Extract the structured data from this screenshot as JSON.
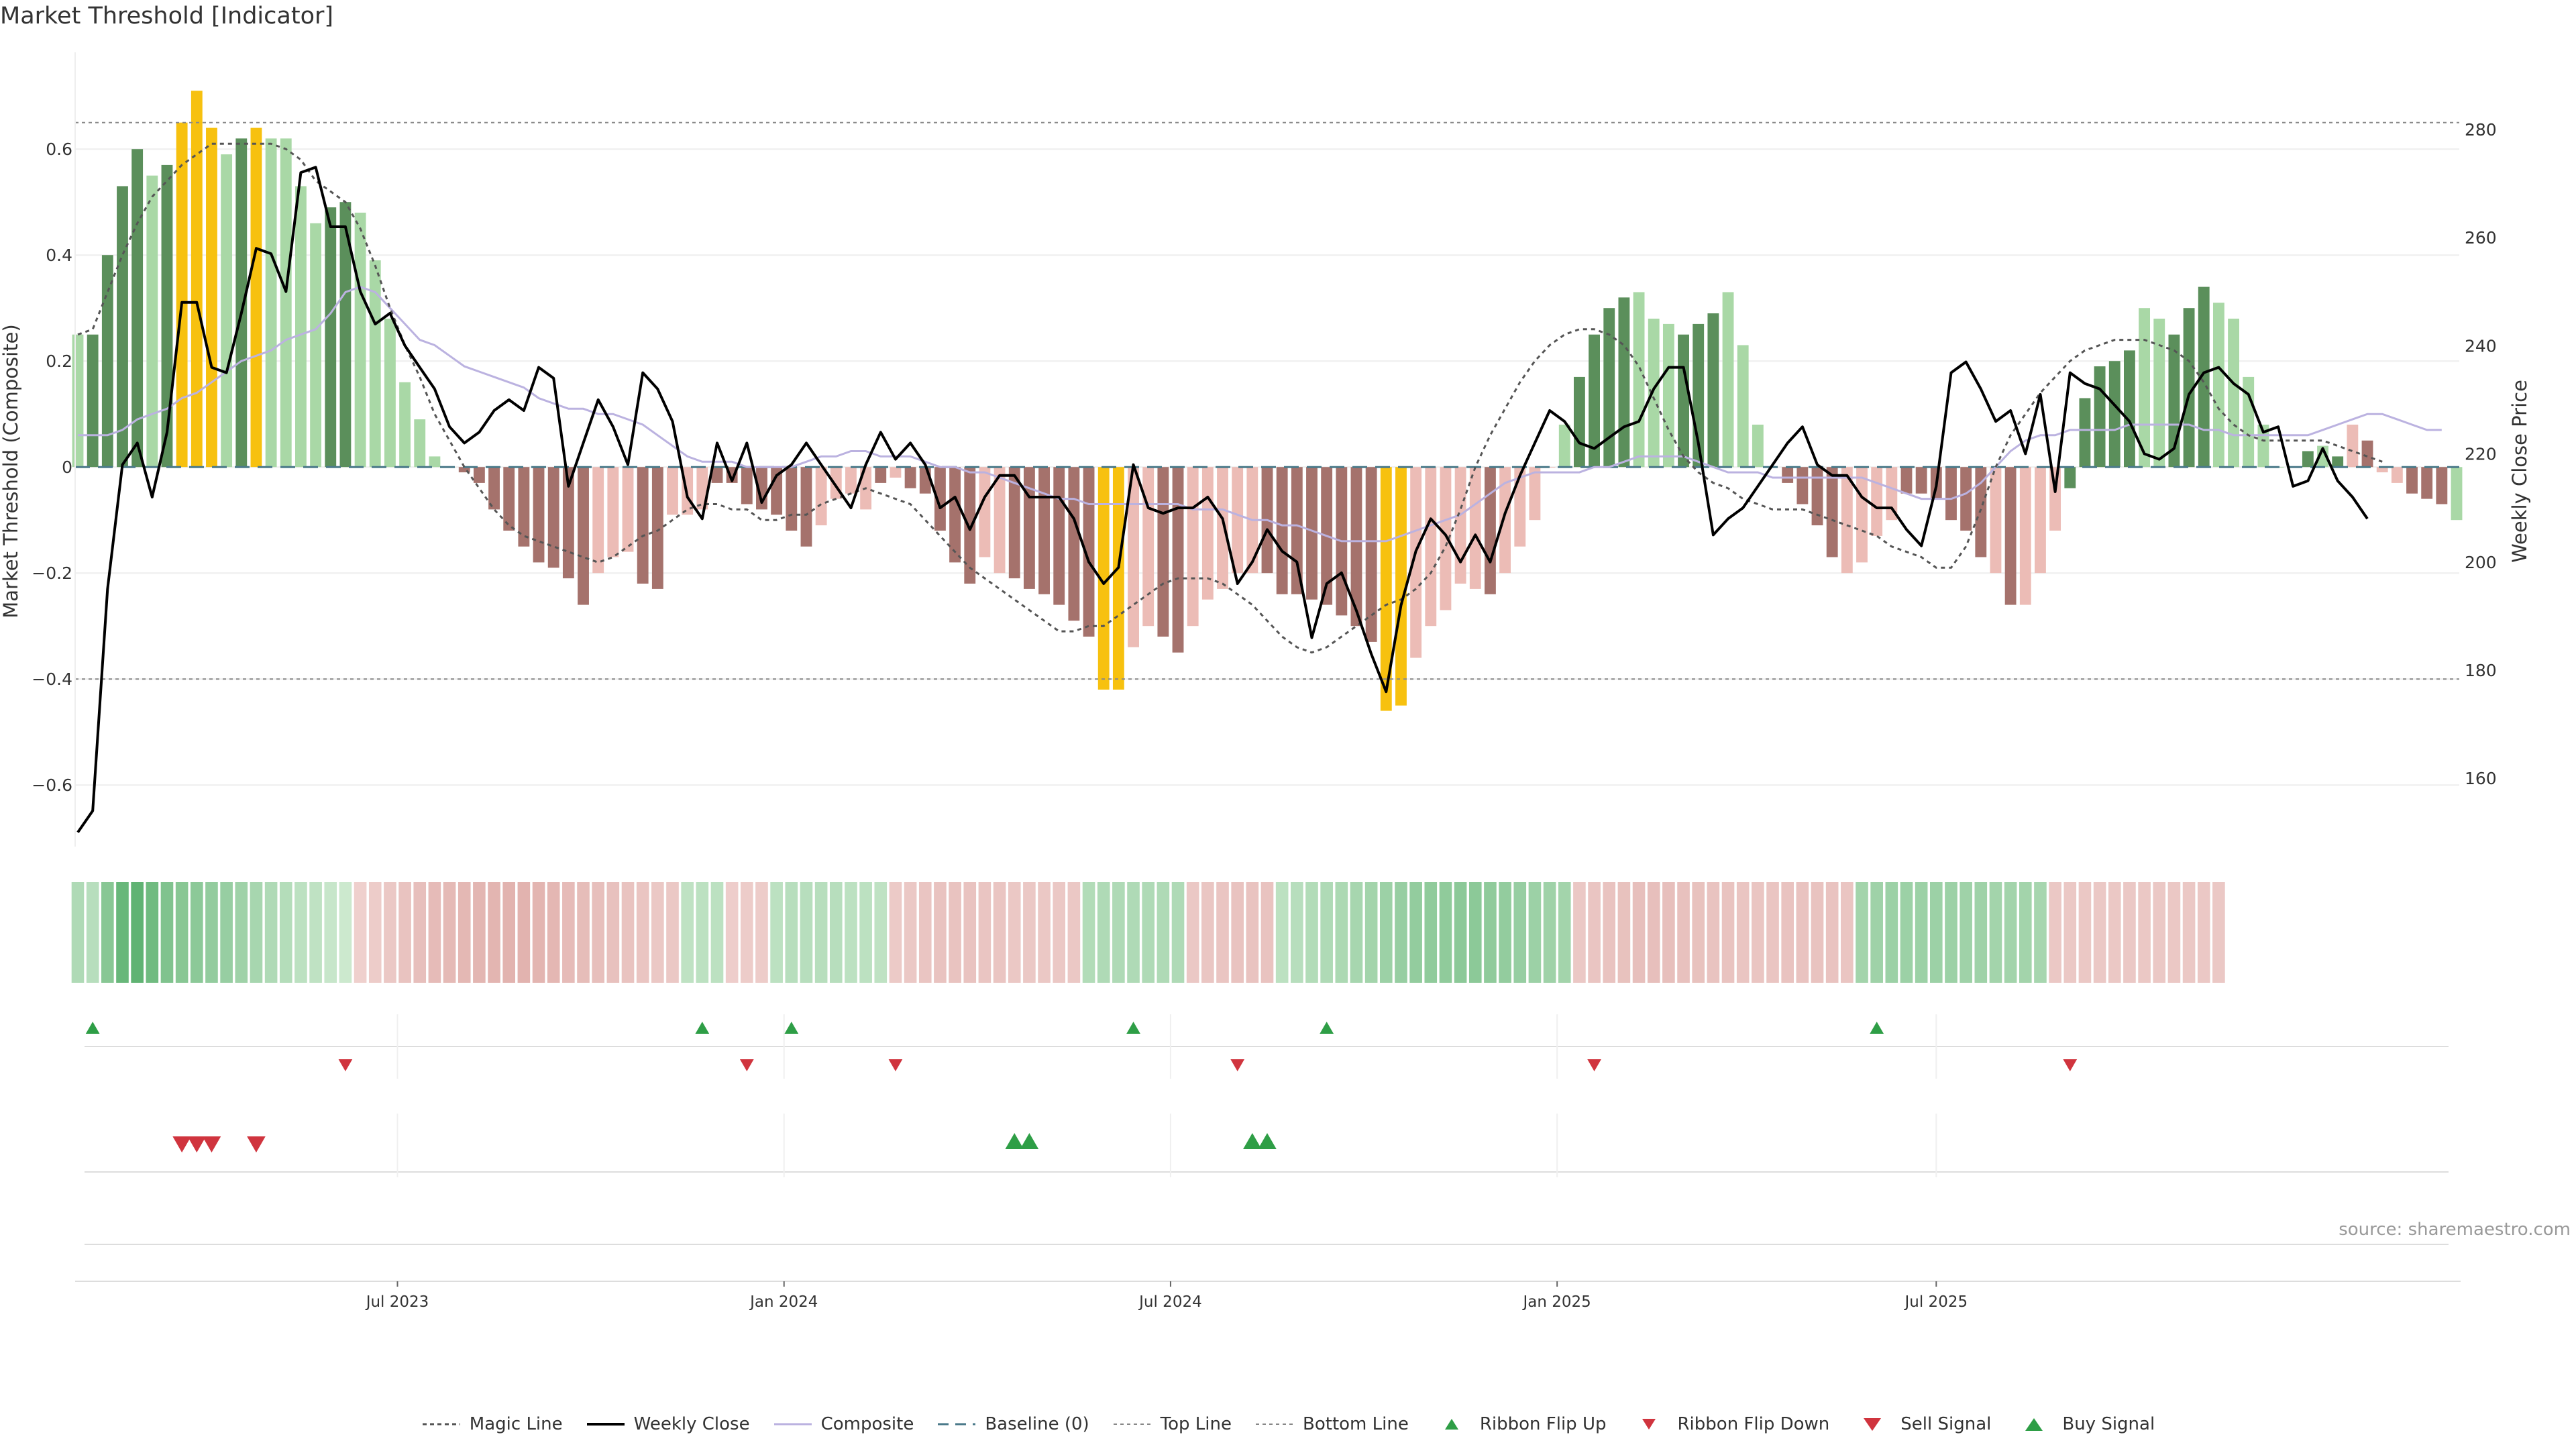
{
  "title": "Market Threshold [Indicator]",
  "source": "source: sharemaestro.com",
  "colors": {
    "strong_pos": "#5b8f5b",
    "weak_pos": "#a9d8a6",
    "strong_neg": "#a5726c",
    "weak_neg": "#ecbcb6",
    "extreme": "#f7c10f",
    "weekly": "#000000",
    "composite": "#bbb2e0",
    "magic": "#555555",
    "baseline": "#4b7a8a",
    "threshold": "#999999",
    "up_marker": "#2e9e46",
    "down_marker": "#d0343e"
  },
  "legend": [
    {
      "label": "Magic Line",
      "style": "magic"
    },
    {
      "label": "Weekly Close",
      "style": "weekly"
    },
    {
      "label": "Composite",
      "style": "composite"
    },
    {
      "label": "Baseline (0)",
      "style": "baseline"
    },
    {
      "label": "Top Line",
      "style": "top"
    },
    {
      "label": "Bottom Line",
      "style": "bottom"
    },
    {
      "label": "Ribbon Flip Up",
      "style": "flipup"
    },
    {
      "label": "Ribbon Flip Down",
      "style": "flipdown"
    },
    {
      "label": "Sell Signal",
      "style": "sell"
    },
    {
      "label": "Buy Signal",
      "style": "buy"
    }
  ],
  "chart_data": {
    "type": "bar",
    "title": "Market Threshold [Indicator]",
    "ylabel": "Market Threshold (Composite)",
    "y2label": "Weekly Close Price",
    "ylim": [
      -0.72,
      0.78
    ],
    "y2lim": [
      147,
      294
    ],
    "yticks": [
      -0.6,
      -0.4,
      -0.2,
      0,
      0.2,
      0.4,
      0.6
    ],
    "y2ticks": [
      160,
      180,
      200,
      220,
      240,
      260,
      280
    ],
    "top_line": 0.65,
    "bottom_line": -0.4,
    "xticks": [
      {
        "index": 21.5,
        "label": "Jul 2023"
      },
      {
        "index": 47.5,
        "label": "Jan 2024"
      },
      {
        "index": 73.5,
        "label": "Jul 2024"
      },
      {
        "index": 99.5,
        "label": "Jan 2025"
      },
      {
        "index": 125,
        "label": "Jul 2025"
      }
    ],
    "composite_bars": [
      0.25,
      0.25,
      0.4,
      0.53,
      0.6,
      0.55,
      0.57,
      0.65,
      0.71,
      0.64,
      0.59,
      0.62,
      0.64,
      0.62,
      0.62,
      0.53,
      0.46,
      0.49,
      0.5,
      0.48,
      0.39,
      0.28,
      0.16,
      0.09,
      0.02,
      0,
      -0.01,
      -0.03,
      -0.08,
      -0.12,
      -0.15,
      -0.18,
      -0.19,
      -0.21,
      -0.26,
      -0.2,
      -0.17,
      -0.16,
      -0.22,
      -0.23,
      -0.09,
      -0.09,
      -0.08,
      -0.03,
      -0.03,
      -0.07,
      -0.08,
      -0.09,
      -0.12,
      -0.15,
      -0.11,
      -0.06,
      -0.05,
      -0.08,
      -0.03,
      -0.02,
      -0.04,
      -0.05,
      -0.12,
      -0.18,
      -0.22,
      -0.17,
      -0.2,
      -0.21,
      -0.23,
      -0.24,
      -0.26,
      -0.29,
      -0.32,
      -0.42,
      -0.42,
      -0.34,
      -0.3,
      -0.32,
      -0.35,
      -0.3,
      -0.25,
      -0.23,
      -0.2,
      -0.2,
      -0.2,
      -0.24,
      -0.24,
      -0.25,
      -0.26,
      -0.28,
      -0.3,
      -0.33,
      -0.46,
      -0.45,
      -0.36,
      -0.3,
      -0.27,
      -0.22,
      -0.23,
      -0.24,
      -0.2,
      -0.15,
      -0.1,
      0,
      0.08,
      0.17,
      0.25,
      0.3,
      0.32,
      0.33,
      0.28,
      0.27,
      0.25,
      0.27,
      0.29,
      0.33,
      0.23,
      0.08,
      0,
      -0.03,
      -0.07,
      -0.11,
      -0.17,
      -0.2,
      -0.18,
      -0.13,
      -0.1,
      -0.05,
      -0.05,
      -0.06,
      -0.1,
      -0.12,
      -0.17,
      -0.2,
      -0.26,
      -0.26,
      -0.2,
      -0.12,
      -0.04,
      0.13,
      0.19,
      0.2,
      0.22,
      0.3,
      0.28,
      0.25,
      0.3,
      0.34,
      0.31,
      0.28,
      0.17,
      0.08,
      0,
      0,
      0.03,
      0.04,
      0.02,
      0.08,
      0.05,
      -0.01,
      -0.03,
      -0.05,
      -0.06,
      -0.07,
      -0.1
    ],
    "bar_categories": [
      "wp",
      "sp",
      "sp",
      "sp",
      "sp",
      "wp",
      "sp",
      "ex",
      "ex",
      "ex",
      "wp",
      "sp",
      "ex",
      "wp",
      "wp",
      "wp",
      "wp",
      "sp",
      "sp",
      "wp",
      "wp",
      "wp",
      "wp",
      "wp",
      "wp",
      "wp",
      "sn",
      "sn",
      "sn",
      "sn",
      "sn",
      "sn",
      "sn",
      "sn",
      "sn",
      "wn",
      "wn",
      "wn",
      "sn",
      "sn",
      "wn",
      "wn",
      "wn",
      "sn",
      "sn",
      "sn",
      "sn",
      "sn",
      "sn",
      "sn",
      "wn",
      "wn",
      "wn",
      "wn",
      "sn",
      "wn",
      "sn",
      "sn",
      "sn",
      "sn",
      "sn",
      "wn",
      "wn",
      "sn",
      "sn",
      "sn",
      "sn",
      "sn",
      "sn",
      "ex",
      "ex",
      "wn",
      "wn",
      "sn",
      "sn",
      "wn",
      "wn",
      "wn",
      "wn",
      "wn",
      "sn",
      "sn",
      "sn",
      "sn",
      "sn",
      "sn",
      "sn",
      "sn",
      "ex",
      "ex",
      "wn",
      "wn",
      "wn",
      "wn",
      "wn",
      "sn",
      "wn",
      "wn",
      "wn",
      "wn",
      "wp",
      "sp",
      "sp",
      "sp",
      "sp",
      "wp",
      "wp",
      "wp",
      "sp",
      "sp",
      "sp",
      "wp",
      "wp",
      "wp",
      "wn",
      "sn",
      "sn",
      "sn",
      "sn",
      "wn",
      "wn",
      "wn",
      "wn",
      "sn",
      "sn",
      "sn",
      "sn",
      "sn",
      "sn",
      "wn",
      "sn",
      "wn",
      "wn",
      "wn",
      "sp",
      "sp",
      "sp",
      "sp",
      "sp",
      "wp",
      "wp",
      "sp",
      "sp",
      "sp",
      "wp",
      "wp",
      "wp",
      "wp",
      "wp",
      "wp",
      "sp",
      "wp",
      "sp",
      "wn",
      "sn",
      "wn",
      "wn",
      "sn",
      "sn",
      "sn"
    ],
    "weekly_close": [
      150,
      154,
      195,
      218,
      222,
      212,
      224,
      248,
      248,
      236,
      235,
      246,
      258,
      257,
      250,
      272,
      273,
      262,
      262,
      250,
      244,
      246,
      240,
      236,
      232,
      225,
      222,
      224,
      228,
      230,
      228,
      236,
      234,
      214,
      222,
      230,
      225,
      218,
      235,
      232,
      226,
      212,
      208,
      222,
      215,
      222,
      211,
      216,
      218,
      222,
      218,
      214,
      210,
      218,
      224,
      219,
      222,
      218,
      210,
      212,
      206,
      212,
      216,
      216,
      212,
      212,
      212,
      208,
      200,
      196,
      199,
      218,
      210,
      209,
      210,
      210,
      212,
      208,
      196,
      200,
      206,
      202,
      200,
      186,
      196,
      198,
      191,
      183,
      176,
      192,
      202,
      208,
      205,
      200,
      205,
      200,
      209,
      216,
      222,
      228,
      226,
      222,
      221,
      223,
      225,
      226,
      232,
      236,
      236,
      222,
      205,
      208,
      210,
      214,
      218,
      222,
      225,
      218,
      216,
      216,
      212,
      210,
      210,
      206,
      203,
      214,
      235,
      237,
      232,
      226,
      228,
      220,
      231,
      213,
      235,
      233,
      232,
      229,
      226,
      220,
      219,
      221,
      231,
      235,
      236,
      233,
      231,
      224,
      225,
      214,
      215,
      221,
      215,
      212,
      208
    ]
  },
  "lines": {
    "magic": [
      0.25,
      0.26,
      0.33,
      0.4,
      0.46,
      0.51,
      0.54,
      0.57,
      0.59,
      0.61,
      0.61,
      0.61,
      0.61,
      0.61,
      0.6,
      0.58,
      0.54,
      0.52,
      0.5,
      0.45,
      0.38,
      0.3,
      0.23,
      0.17,
      0.1,
      0.05,
      0,
      -0.04,
      -0.08,
      -0.11,
      -0.13,
      -0.14,
      -0.15,
      -0.16,
      -0.17,
      -0.18,
      -0.17,
      -0.15,
      -0.13,
      -0.12,
      -0.1,
      -0.08,
      -0.07,
      -0.07,
      -0.08,
      -0.08,
      -0.1,
      -0.1,
      -0.09,
      -0.09,
      -0.07,
      -0.06,
      -0.05,
      -0.04,
      -0.05,
      -0.06,
      -0.07,
      -0.1,
      -0.13,
      -0.16,
      -0.19,
      -0.21,
      -0.23,
      -0.25,
      -0.27,
      -0.29,
      -0.31,
      -0.31,
      -0.3,
      -0.3,
      -0.28,
      -0.26,
      -0.24,
      -0.22,
      -0.21,
      -0.21,
      -0.21,
      -0.22,
      -0.24,
      -0.26,
      -0.29,
      -0.32,
      -0.34,
      -0.35,
      -0.34,
      -0.32,
      -0.3,
      -0.28,
      -0.26,
      -0.25,
      -0.23,
      -0.2,
      -0.15,
      -0.08,
      0,
      0.06,
      0.11,
      0.16,
      0.2,
      0.23,
      0.25,
      0.26,
      0.26,
      0.25,
      0.23,
      0.19,
      0.13,
      0.07,
      0.02,
      -0.01,
      -0.03,
      -0.04,
      -0.06,
      -0.07,
      -0.08,
      -0.08,
      -0.08,
      -0.09,
      -0.1,
      -0.11,
      -0.12,
      -0.13,
      -0.15,
      -0.16,
      -0.17,
      -0.19,
      -0.19,
      -0.15,
      -0.08,
      0,
      0.06,
      0.1,
      0.14,
      0.17,
      0.2,
      0.22,
      0.23,
      0.24,
      0.24,
      0.24,
      0.23,
      0.22,
      0.2,
      0.16,
      0.11,
      0.08,
      0.06,
      0.05,
      0.05,
      0.05,
      0.05,
      0.05,
      0.04,
      0.03,
      0.02,
      0.01
    ],
    "composite": [
      0.06,
      0.06,
      0.06,
      0.07,
      0.09,
      0.1,
      0.11,
      0.13,
      0.14,
      0.16,
      0.18,
      0.2,
      0.21,
      0.22,
      0.24,
      0.25,
      0.26,
      0.29,
      0.33,
      0.34,
      0.33,
      0.3,
      0.27,
      0.24,
      0.23,
      0.21,
      0.19,
      0.18,
      0.17,
      0.16,
      0.15,
      0.13,
      0.12,
      0.11,
      0.11,
      0.1,
      0.1,
      0.09,
      0.08,
      0.06,
      0.04,
      0.02,
      0.01,
      0.01,
      0.01,
      0,
      0,
      0,
      0,
      0.01,
      0.02,
      0.02,
      0.03,
      0.03,
      0.02,
      0.02,
      0.02,
      0.01,
      0,
      0,
      -0.01,
      -0.01,
      -0.02,
      -0.03,
      -0.04,
      -0.05,
      -0.06,
      -0.06,
      -0.07,
      -0.07,
      -0.07,
      -0.07,
      -0.07,
      -0.07,
      -0.07,
      -0.08,
      -0.08,
      -0.08,
      -0.09,
      -0.1,
      -0.1,
      -0.11,
      -0.11,
      -0.12,
      -0.13,
      -0.14,
      -0.14,
      -0.14,
      -0.14,
      -0.13,
      -0.12,
      -0.11,
      -0.1,
      -0.09,
      -0.07,
      -0.05,
      -0.03,
      -0.02,
      -0.01,
      -0.01,
      -0.01,
      -0.01,
      0,
      0,
      0.01,
      0.02,
      0.02,
      0.02,
      0.02,
      0.01,
      0,
      -0.01,
      -0.01,
      -0.01,
      -0.02,
      -0.02,
      -0.02,
      -0.02,
      -0.02,
      -0.02,
      -0.02,
      -0.03,
      -0.04,
      -0.05,
      -0.06,
      -0.06,
      -0.06,
      -0.05,
      -0.03,
      0,
      0.03,
      0.05,
      0.06,
      0.06,
      0.07,
      0.07,
      0.07,
      0.07,
      0.08,
      0.08,
      0.08,
      0.08,
      0.08,
      0.07,
      0.07,
      0.06,
      0.06,
      0.06,
      0.06,
      0.06,
      0.06,
      0.07,
      0.08,
      0.09,
      0.1,
      0.1,
      0.09,
      0.08,
      0.07,
      0.07
    ]
  },
  "ribbon": [
    0.3,
    0.25,
    0.55,
    0.75,
    0.8,
    0.7,
    0.6,
    0.55,
    0.52,
    0.48,
    0.45,
    0.4,
    0.35,
    0.3,
    0.27,
    0.22,
    0.2,
    0.15,
    0.12,
    -0.15,
    -0.2,
    -0.25,
    -0.3,
    -0.35,
    -0.4,
    -0.42,
    -0.44,
    -0.46,
    -0.48,
    -0.5,
    -0.5,
    -0.48,
    -0.45,
    -0.4,
    -0.38,
    -0.35,
    -0.33,
    -0.3,
    -0.28,
    -0.25,
    -0.25,
    0.2,
    0.22,
    0.22,
    -0.18,
    -0.2,
    -0.2,
    0.22,
    0.25,
    0.25,
    0.25,
    0.25,
    0.22,
    0.22,
    0.2,
    -0.22,
    -0.25,
    -0.28,
    -0.3,
    -0.3,
    -0.3,
    -0.28,
    -0.28,
    -0.25,
    -0.25,
    -0.25,
    -0.25,
    -0.25,
    0.28,
    0.3,
    0.3,
    0.3,
    0.3,
    0.3,
    0.3,
    -0.25,
    -0.27,
    -0.28,
    -0.3,
    -0.3,
    -0.3,
    0.22,
    0.25,
    0.28,
    0.3,
    0.32,
    0.35,
    0.38,
    0.42,
    0.45,
    0.48,
    0.5,
    0.5,
    0.52,
    0.52,
    0.5,
    0.48,
    0.45,
    0.42,
    0.4,
    0.38,
    -0.25,
    -0.28,
    -0.3,
    -0.32,
    -0.35,
    -0.35,
    -0.35,
    -0.33,
    -0.32,
    -0.3,
    -0.3,
    -0.28,
    -0.28,
    -0.28,
    -0.3,
    -0.3,
    -0.3,
    -0.3,
    -0.28,
    0.38,
    0.4,
    0.42,
    0.42,
    0.42,
    0.42,
    0.42,
    0.4,
    0.4,
    0.38,
    0.38,
    0.38,
    0.35,
    -0.25,
    -0.25,
    -0.25,
    -0.25,
    -0.25,
    -0.25,
    -0.25,
    -0.25,
    -0.25,
    -0.25,
    -0.25,
    -0.25
  ],
  "signals": {
    "ribbon_flip_up": [
      1,
      42,
      48,
      71,
      84,
      121
    ],
    "ribbon_flip_down": [
      18,
      45,
      55,
      78,
      102,
      134
    ],
    "sell_signal": [
      7,
      8,
      9,
      12
    ],
    "buy_signal": [
      63,
      64,
      79,
      80
    ]
  }
}
